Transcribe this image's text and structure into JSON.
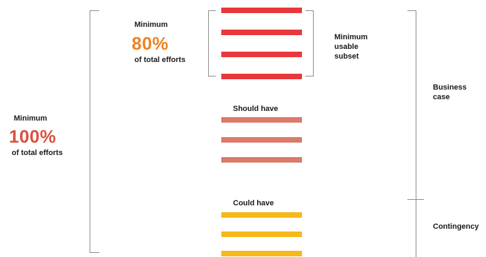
{
  "left_block": {
    "minimum_label": "Minimum",
    "percent": "100%",
    "efforts_label": "of total efforts",
    "percent_color": "#dd4f3f"
  },
  "inner_block": {
    "minimum_label": "Minimum",
    "percent": "80%",
    "efforts_label": "of total efforts",
    "percent_color": "#f08122"
  },
  "must_have": {
    "label_lines": [
      "Minimum",
      "usable",
      "subset"
    ],
    "bar_count": 4,
    "color": "#e8383c"
  },
  "should_have": {
    "label": "Should have",
    "bar_count": 3,
    "color": "#db7a6a"
  },
  "could_have": {
    "label": "Could have",
    "bar_count": 3,
    "color": "#f7b918"
  },
  "right_labels": {
    "business_case": [
      "Business",
      "case"
    ],
    "contingency": "Contingency"
  }
}
